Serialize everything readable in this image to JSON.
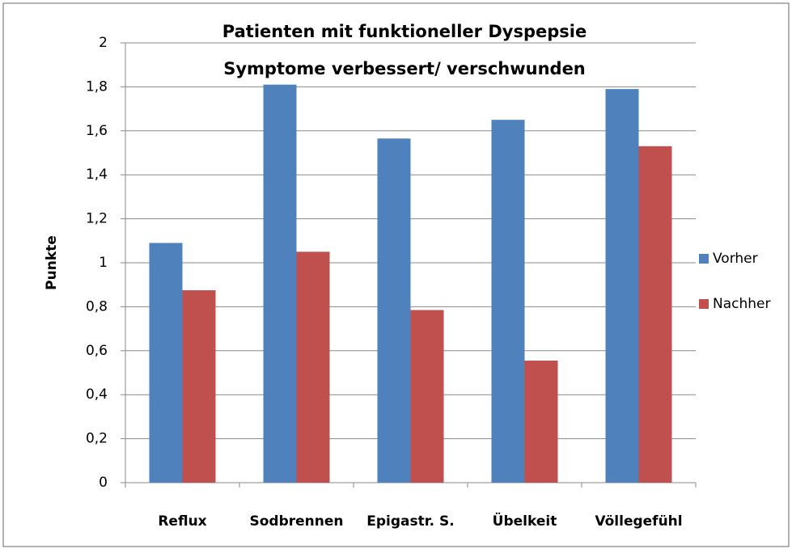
{
  "chart_data": {
    "type": "bar",
    "title": "Patienten mit funktioneller Dyspepsie",
    "subtitle": "Symptome verbessert/ verschwunden",
    "y_label": "Punkte",
    "categories": [
      "Reflux",
      "Sodbrennen",
      "Epigastr. S.",
      "Übelkeit",
      "Völlegefühl"
    ],
    "series": [
      {
        "name": "Vorher",
        "color": "#4f81bd",
        "values": [
          1.09,
          1.81,
          1.565,
          1.65,
          1.79
        ]
      },
      {
        "name": "Nachher",
        "color": "#c0504d",
        "values": [
          0.875,
          1.05,
          0.785,
          0.555,
          1.53
        ]
      }
    ],
    "ylim": [
      0,
      2
    ],
    "yticks": [
      0,
      {
        "value": 0.2,
        "label": "0,2"
      },
      {
        "value": 0.4,
        "label": "0,4"
      },
      {
        "value": 0.6,
        "label": "0,6"
      },
      {
        "value": 0.8,
        "label": "0,8"
      },
      1,
      {
        "value": 1.2,
        "label": "1,2"
      },
      {
        "value": 1.4,
        "label": "1,4"
      },
      {
        "value": 1.6,
        "label": "1,6"
      },
      {
        "value": 1.8,
        "label": "1,8"
      },
      2
    ],
    "grid": true,
    "legend": "right"
  }
}
